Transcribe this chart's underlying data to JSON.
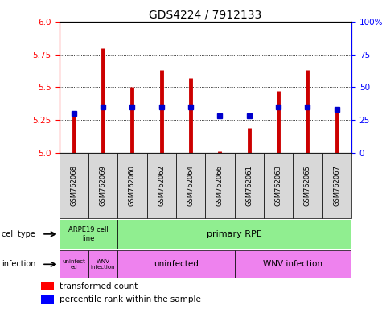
{
  "title": "GDS4224 / 7912133",
  "samples": [
    "GSM762068",
    "GSM762069",
    "GSM762060",
    "GSM762062",
    "GSM762064",
    "GSM762066",
    "GSM762061",
    "GSM762063",
    "GSM762065",
    "GSM762067"
  ],
  "transformed_count": [
    5.3,
    5.8,
    5.5,
    5.63,
    5.57,
    5.01,
    5.19,
    5.47,
    5.63,
    5.35
  ],
  "percentile_rank": [
    30,
    35,
    35,
    35,
    35,
    28,
    28,
    35,
    35,
    33
  ],
  "ylim": [
    5.0,
    6.0
  ],
  "yticks_left": [
    5.0,
    5.25,
    5.5,
    5.75,
    6.0
  ],
  "yticks_right": [
    0,
    25,
    50,
    75,
    100
  ],
  "bar_color": "#cc0000",
  "dot_color": "#0000cc",
  "cell_type_arpe_color": "#90EE90",
  "cell_type_rpe_color": "#90EE90",
  "infection_color": "#EE82EE",
  "label_fontsize": 7.5,
  "tick_fontsize": 7.5,
  "bar_linewidth": 3.5
}
